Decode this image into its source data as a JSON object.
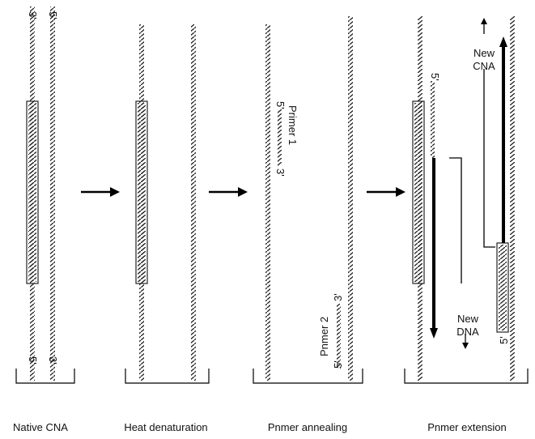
{
  "strand_ends": {
    "five_prime": "5'",
    "three_prime": "3'"
  },
  "panels": [
    {
      "label": "Native CNA"
    },
    {
      "label": "Heat denaturation"
    },
    {
      "label": "Pnmer annealing",
      "primer_1": "Primer 1",
      "primer_2": "Pnmer 2"
    },
    {
      "label": "Pnmer extension",
      "new_top": "New CNA",
      "new_bottom": "New DNA"
    }
  ]
}
